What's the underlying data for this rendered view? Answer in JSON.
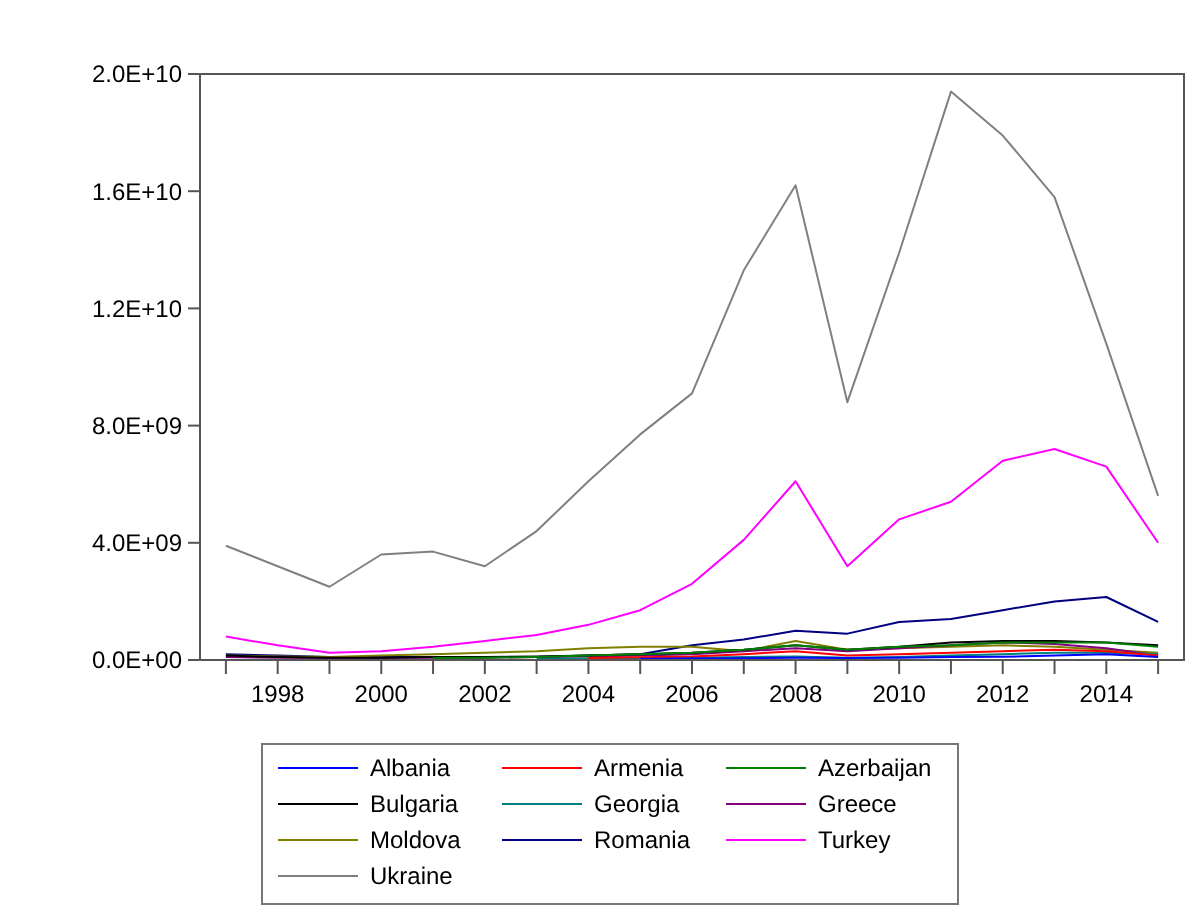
{
  "chart_data": {
    "type": "line",
    "x": [
      1997,
      1998,
      1999,
      2000,
      2001,
      2002,
      2003,
      2004,
      2005,
      2006,
      2007,
      2008,
      2009,
      2010,
      2011,
      2012,
      2013,
      2014,
      2015
    ],
    "xlim": [
      1996.5,
      2015.5
    ],
    "xticks": [
      {
        "value": 1997,
        "label": null
      },
      1998,
      {
        "value": 1999,
        "label": null
      },
      2000,
      {
        "value": 2001,
        "label": null
      },
      2002,
      {
        "value": 2003,
        "label": null
      },
      2004,
      {
        "value": 2005,
        "label": null
      },
      2006,
      {
        "value": 2007,
        "label": null
      },
      2008,
      {
        "value": 2009,
        "label": null
      },
      2010,
      {
        "value": 2011,
        "label": null
      },
      2012,
      {
        "value": 2013,
        "label": null
      },
      2014,
      {
        "value": 2015,
        "label": null
      }
    ],
    "ylim": [
      0,
      20000000000
    ],
    "yticks": [
      {
        "value": 0,
        "label": "0.0E+00"
      },
      {
        "value": 4000000000,
        "label": "4.0E+09"
      },
      {
        "value": 8000000000,
        "label": "8.0E+09"
      },
      {
        "value": 12000000000,
        "label": "1.2E+10"
      },
      {
        "value": 16000000000,
        "label": "1.6E+10"
      },
      {
        "value": 20000000000,
        "label": "2.0E+10"
      }
    ],
    "grid": false,
    "legend": "bottom",
    "line_style": "solid",
    "marker": "none",
    "series": [
      {
        "name": "Albania",
        "color": "#0000ff",
        "values": [
          null,
          null,
          null,
          null,
          null,
          null,
          null,
          null,
          40000000,
          50000000,
          60000000,
          80000000,
          70000000,
          80000000,
          100000000,
          110000000,
          150000000,
          200000000,
          100000000
        ]
      },
      {
        "name": "Armenia",
        "color": "#ff0000",
        "values": [
          null,
          null,
          null,
          null,
          null,
          null,
          null,
          70000000,
          90000000,
          120000000,
          200000000,
          300000000,
          150000000,
          200000000,
          250000000,
          300000000,
          350000000,
          300000000,
          150000000
        ]
      },
      {
        "name": "Azerbaijan",
        "color": "#008000",
        "values": [
          null,
          null,
          null,
          null,
          70000000,
          80000000,
          100000000,
          150000000,
          200000000,
          250000000,
          350000000,
          500000000,
          350000000,
          450000000,
          500000000,
          600000000,
          600000000,
          600000000,
          450000000
        ]
      },
      {
        "name": "Bulgaria",
        "color": "#000000",
        "values": [
          150000000,
          100000000,
          80000000,
          80000000,
          100000000,
          100000000,
          120000000,
          150000000,
          200000000,
          250000000,
          350000000,
          500000000,
          350000000,
          450000000,
          600000000,
          650000000,
          650000000,
          600000000,
          500000000
        ]
      },
      {
        "name": "Georgia",
        "color": "#008080",
        "values": [
          null,
          null,
          null,
          null,
          null,
          null,
          40000000,
          50000000,
          60000000,
          80000000,
          100000000,
          120000000,
          80000000,
          100000000,
          150000000,
          200000000,
          250000000,
          250000000,
          200000000
        ]
      },
      {
        "name": "Greece",
        "color": "#800080",
        "values": [
          100000000,
          80000000,
          70000000,
          70000000,
          80000000,
          80000000,
          100000000,
          120000000,
          150000000,
          200000000,
          300000000,
          400000000,
          300000000,
          400000000,
          500000000,
          600000000,
          550000000,
          400000000,
          150000000
        ]
      },
      {
        "name": "Moldova",
        "color": "#808000",
        "values": [
          150000000,
          120000000,
          100000000,
          150000000,
          200000000,
          250000000,
          300000000,
          400000000,
          450000000,
          450000000,
          300000000,
          650000000,
          350000000,
          400000000,
          450000000,
          500000000,
          450000000,
          350000000,
          250000000
        ]
      },
      {
        "name": "Romania",
        "color": "#000080",
        "values": [
          200000000,
          150000000,
          100000000,
          100000000,
          100000000,
          100000000,
          100000000,
          150000000,
          200000000,
          500000000,
          700000000,
          1000000000,
          900000000,
          1300000000,
          1400000000,
          1700000000,
          2000000000,
          2150000000,
          1300000000
        ]
      },
      {
        "name": "Turkey",
        "color": "#ff00ff",
        "values": [
          800000000,
          500000000,
          250000000,
          300000000,
          450000000,
          650000000,
          850000000,
          1200000000,
          1700000000,
          2600000000,
          4100000000,
          6100000000,
          3200000000,
          4800000000,
          5400000000,
          6800000000,
          7200000000,
          6600000000,
          4000000000
        ]
      },
      {
        "name": "Ukraine",
        "color": "#808080",
        "values": [
          3900000000,
          3200000000,
          2500000000,
          3600000000,
          3700000000,
          3200000000,
          4400000000,
          6100000000,
          7700000000,
          9100000000,
          13300000000,
          16200000000,
          8800000000,
          13900000000,
          19400000000,
          17900000000,
          15800000000,
          10800000000,
          5600000000
        ]
      }
    ]
  }
}
